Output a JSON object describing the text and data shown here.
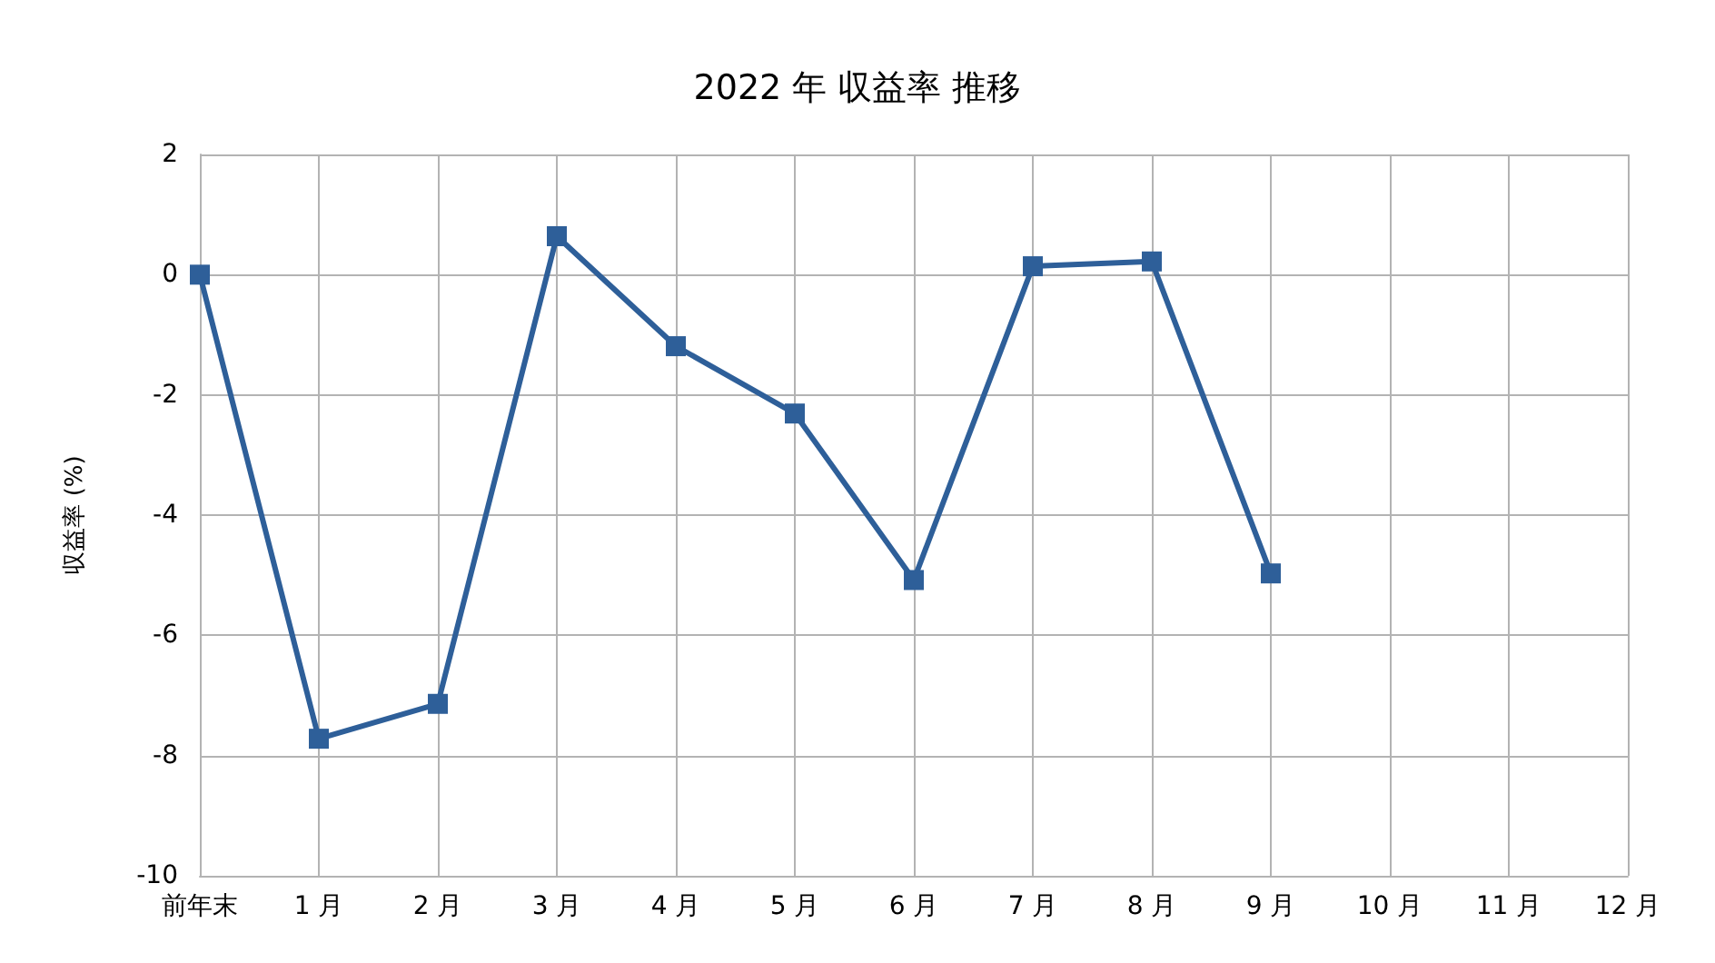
{
  "chart_data": {
    "type": "line",
    "title": "2022 年 収益率 推移",
    "ylabel": "収益率 (%)",
    "categories": [
      "前年末",
      "1 月",
      "2 月",
      "3 月",
      "4 月",
      "5 月",
      "6 月",
      "7 月",
      "8 月",
      "9 月",
      "10 月",
      "11 月",
      "12 月"
    ],
    "series": [
      {
        "color": "#2e5f99",
        "values": [
          0,
          -7.72,
          -7.14,
          0.64,
          -1.19,
          -2.31,
          -5.08,
          0.14,
          0.22,
          -4.97,
          null,
          null,
          null
        ]
      }
    ],
    "ylim": [
      -10,
      2
    ],
    "yticks": [
      -10,
      -8,
      -6,
      -4,
      -2,
      0,
      2
    ],
    "grid": true,
    "marker": "square",
    "line_style": "solid"
  }
}
